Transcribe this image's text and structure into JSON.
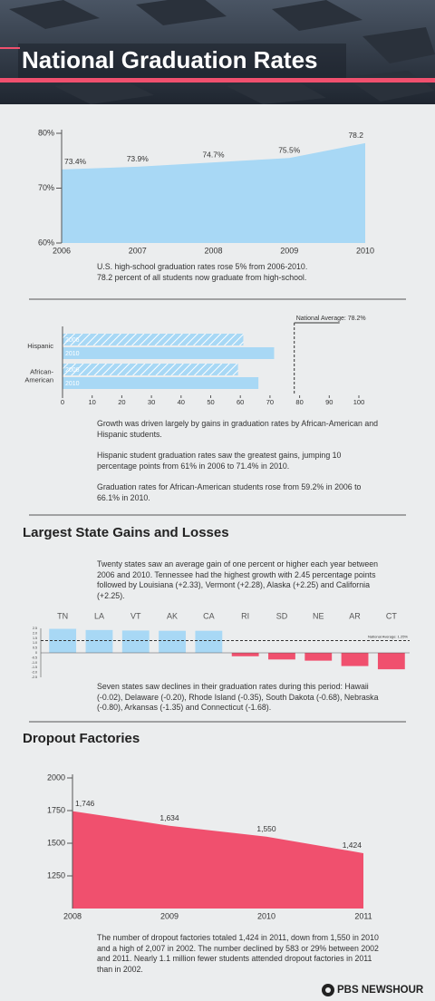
{
  "title": "National Graduation Rates",
  "chart_data": [
    {
      "type": "area",
      "x": [
        2006,
        2007,
        2008,
        2009,
        2010
      ],
      "values": [
        73.4,
        73.9,
        74.7,
        75.5,
        78.2
      ],
      "value_labels": [
        "73.4%",
        "73.9%",
        "74.7%",
        "75.5%",
        "78.2"
      ],
      "color": "#a8d8f5",
      "xlim": [
        2006,
        2010
      ],
      "xticks": [
        2006,
        2007,
        2008,
        2009,
        2010
      ],
      "ylim": [
        60,
        80
      ],
      "yticks": [
        {
          "value": 60,
          "label": "60%"
        },
        {
          "value": 70,
          "label": "70%"
        },
        {
          "value": 80,
          "label": "80%"
        }
      ],
      "notes": [
        "U.S. high-school graduation rates rose 5% from 2006-2010.",
        "78.2 percent of all students now graduate from high-school."
      ]
    },
    {
      "type": "hbar",
      "categories": [
        "Hispanic",
        "African-American"
      ],
      "series": [
        {
          "name": "2006",
          "color": "#a8d8f5",
          "hatch": true,
          "values": [
            61,
            59.2
          ]
        },
        {
          "name": "2010",
          "color": "#a8d8f5",
          "hatch": false,
          "values": [
            71.4,
            66.1
          ]
        }
      ],
      "xlim": [
        0,
        100
      ],
      "xticks": [
        0,
        10,
        20,
        30,
        40,
        50,
        60,
        70,
        80,
        90,
        100
      ],
      "reference": {
        "value": 78.2,
        "label": "National Average: 78.2%"
      },
      "notes": [
        "Growth was driven largely by gains in graduation rates by African-American and Hispanic students.",
        "Hispanic student graduation rates saw the greatest gains, jumping 10 percentage points from 61% in 2006 to 71.4% in 2010.",
        "Graduation rates for African-American students rose from 59.2% in 2006 to 66.1% in 2010."
      ]
    },
    {
      "type": "bar",
      "title": "Largest State Gains and Losses",
      "description": "Twenty states saw an average gain of one percent or higher each year between 2006 and 2010. Tennessee had the highest growth with 2.45 percentage points followed by Louisiana (+2.33), Vermont (+2.28), Alaska (+2.25) and California (+2.25).",
      "categories": [
        "TN",
        "LA",
        "VT",
        "AK",
        "CA",
        "RI",
        "SD",
        "NE",
        "AR",
        "CT"
      ],
      "values": [
        2.45,
        2.33,
        2.28,
        2.25,
        2.25,
        -0.35,
        -0.68,
        -0.8,
        -1.35,
        -1.68
      ],
      "positive_color": "#a8d8f5",
      "negative_color": "#f0506e",
      "ylim": [
        -2.5,
        2.5
      ],
      "yticks": [
        2.5,
        {
          "value": 2,
          "label": "2.0"
        },
        1.5,
        {
          "value": 1,
          "label": "1.0"
        },
        0.5,
        0,
        -0.5,
        {
          "value": -1,
          "label": "-1.0"
        },
        -1.5,
        {
          "value": -2,
          "label": "-2.0"
        },
        -2.5
      ],
      "reference": {
        "value": 1.25,
        "label": "National Average: 1.25%"
      },
      "notes": [
        "Seven states saw declines in their graduation rates during this period: Hawaii (-0.02), Delaware (-0.20), Rhode Island (-0.35), South Dakota (-0.68), Nebraska (-0.80), Arkansas (-1.35) and Connecticut (-1.68)."
      ]
    },
    {
      "type": "area",
      "title": "Dropout Factories",
      "x": [
        2008,
        2009,
        2010,
        2011
      ],
      "values": [
        1746,
        1634,
        1550,
        1424
      ],
      "value_labels": [
        "1,746",
        "1,634",
        "1,550",
        "1,424"
      ],
      "color": "#f0506e",
      "xlim": [
        2008,
        2011
      ],
      "xticks": [
        2008,
        2009,
        2010,
        2011
      ],
      "ylim": [
        1000,
        2000
      ],
      "yticks": [
        1250,
        1500,
        1750,
        2000
      ],
      "notes": [
        "The number of dropout factories totaled 1,424 in 2011, down from 1,550 in 2010 and a high of 2,007 in 2002. The number declined by 583 or 29% between 2002 and 2011. Nearly 1.1 million fewer students attended dropout factories in 2011 than in 2002."
      ]
    }
  ],
  "footer": {
    "logo": "PBS NEWSHOUR"
  }
}
